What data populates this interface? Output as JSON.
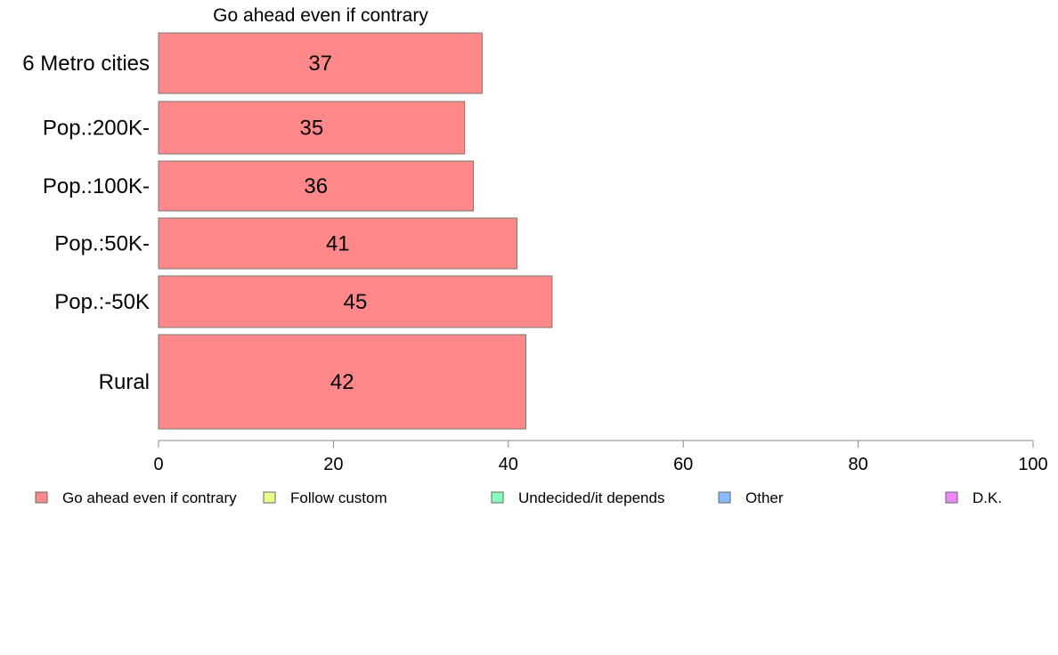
{
  "chart_data": {
    "type": "bar",
    "orientation": "horizontal",
    "title": "Go ahead even if contrary",
    "categories": [
      "6 Metro cities",
      "Pop.:200K-",
      "Pop.:100K-",
      "Pop.:50K-",
      "Pop.:-50K",
      "Rural"
    ],
    "series": [
      {
        "name": "Go ahead even if contrary",
        "values": [
          37,
          35,
          36,
          41,
          45,
          42
        ],
        "color": "#ff8888"
      }
    ],
    "xlim": [
      0,
      100
    ],
    "xticks": [
      0,
      20,
      40,
      60,
      80,
      100
    ],
    "grid": false,
    "legend": {
      "placement": "bottom",
      "items": [
        {
          "label": "Go ahead even if contrary",
          "color": "#ff8888"
        },
        {
          "label": "Follow custom",
          "color": "#eeff88"
        },
        {
          "label": "Undecided/it depends",
          "color": "#88ffbb"
        },
        {
          "label": "Other",
          "color": "#88bbff"
        },
        {
          "label": "D.K.",
          "color": "#ee88ff"
        }
      ]
    }
  }
}
